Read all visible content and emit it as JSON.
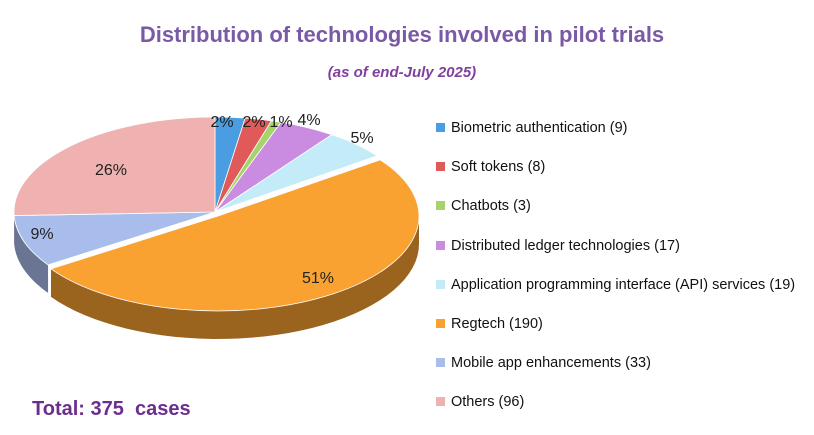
{
  "chart_data": {
    "type": "pie",
    "title": "Distribution of technologies involved in pilot trials",
    "subtitle": "(as of end-July 2025)",
    "slices": [
      {
        "label": "Biometric authentication (9)",
        "value": 9,
        "pct_label": "2%",
        "color": "#4a9de0"
      },
      {
        "label": "Soft tokens (8)",
        "value": 8,
        "pct_label": "2%",
        "color": "#e05a5a"
      },
      {
        "label": "Chatbots (3)",
        "value": 3,
        "pct_label": "1%",
        "color": "#a5d46a"
      },
      {
        "label": "Distributed ledger technologies (17)",
        "value": 17,
        "pct_label": "4%",
        "color": "#c98ce0"
      },
      {
        "label": "Application programming interface (API) services (19)",
        "value": 19,
        "pct_label": "5%",
        "color": "#c4ecf8"
      },
      {
        "label": "Regtech (190)",
        "value": 190,
        "pct_label": "51%",
        "color": "#f9a232"
      },
      {
        "label": "Mobile app enhancements (33)",
        "value": 33,
        "pct_label": "9%",
        "color": "#a9bdec"
      },
      {
        "label": "Others (96)",
        "value": 96,
        "pct_label": "26%",
        "color": "#f0b2b0"
      }
    ],
    "legend_position": "right",
    "style": "3d-exploded"
  },
  "total_text": "Total: 375  cases"
}
